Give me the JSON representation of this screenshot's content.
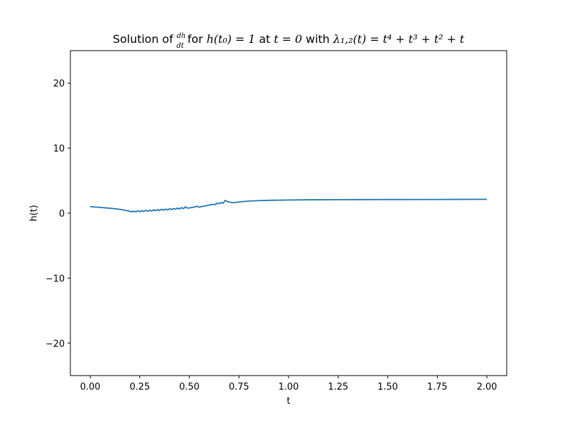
{
  "chart_data": {
    "type": "line",
    "title": "Solution of dh/dt for h(t₀) = 1 at t = 0 with λ₁,₂(t) = t⁴ + t³ + t² + t",
    "title_parts": {
      "prefix": "Solution of ",
      "frac_num": "dh",
      "frac_den": "dt",
      "mid1": " for ",
      "cond": "h(t₀) = 1",
      "mid2": " at ",
      "t0": "t = 0",
      "mid3": " with ",
      "lambda": "λ₁,₂(t) = t⁴ + t³ + t² + t"
    },
    "xlabel": "t",
    "ylabel": "h(t)",
    "xlim": [
      -0.1,
      2.1
    ],
    "ylim": [
      -25,
      25
    ],
    "xticks": [
      0.0,
      0.25,
      0.5,
      0.75,
      1.0,
      1.25,
      1.5,
      1.75,
      2.0
    ],
    "xtick_labels": [
      "0.00",
      "0.25",
      "0.50",
      "0.75",
      "1.00",
      "1.25",
      "1.50",
      "1.75",
      "2.00"
    ],
    "yticks": [
      -20,
      -10,
      0,
      10,
      20
    ],
    "ytick_labels": [
      "−20",
      "−10",
      "0",
      "10",
      "20"
    ],
    "grid": false,
    "series": [
      {
        "color": "#1f77b4",
        "x": [
          0.0,
          0.05,
          0.1,
          0.15,
          0.19,
          0.21,
          0.22,
          0.23,
          0.24,
          0.25,
          0.26,
          0.27,
          0.28,
          0.29,
          0.3,
          0.31,
          0.32,
          0.33,
          0.34,
          0.35,
          0.36,
          0.37,
          0.38,
          0.39,
          0.4,
          0.41,
          0.42,
          0.43,
          0.44,
          0.45,
          0.46,
          0.47,
          0.48,
          0.49,
          0.5,
          0.52,
          0.54,
          0.55,
          0.56,
          0.58,
          0.6,
          0.62,
          0.63,
          0.64,
          0.65,
          0.66,
          0.67,
          0.68,
          0.69,
          0.7,
          0.72,
          0.75,
          0.8,
          0.85,
          0.9,
          1.0,
          1.1,
          1.25,
          1.5,
          1.75,
          2.0
        ],
        "y": [
          1.0,
          0.88,
          0.75,
          0.58,
          0.35,
          0.2,
          0.3,
          0.18,
          0.35,
          0.22,
          0.4,
          0.25,
          0.42,
          0.3,
          0.45,
          0.32,
          0.5,
          0.38,
          0.55,
          0.4,
          0.6,
          0.45,
          0.62,
          0.5,
          0.68,
          0.55,
          0.72,
          0.6,
          0.78,
          0.62,
          0.85,
          0.7,
          0.95,
          0.78,
          0.8,
          0.9,
          1.05,
          0.9,
          1.0,
          1.1,
          1.25,
          1.35,
          1.3,
          1.55,
          1.45,
          1.65,
          1.5,
          1.95,
          1.8,
          1.7,
          1.6,
          1.72,
          1.85,
          1.92,
          1.97,
          2.02,
          2.05,
          2.07,
          2.09,
          2.1,
          2.12
        ]
      }
    ]
  }
}
